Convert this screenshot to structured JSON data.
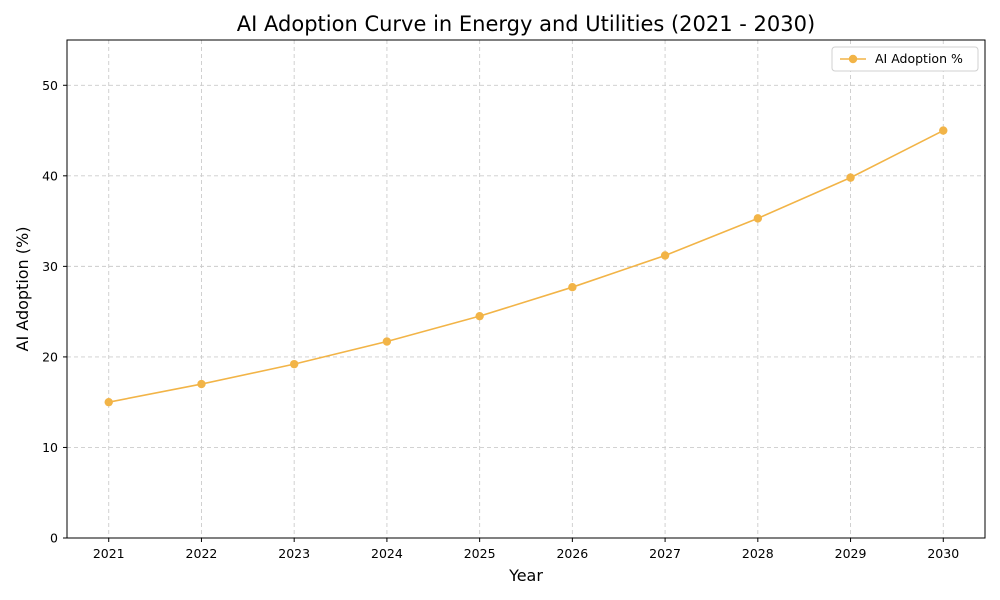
{
  "chart_data": {
    "type": "line",
    "title": "AI Adoption Curve in Energy and Utilities (2021 - 2030)",
    "xlabel": "Year",
    "ylabel": "AI Adoption (%)",
    "x": [
      2021,
      2022,
      2023,
      2024,
      2025,
      2026,
      2027,
      2028,
      2029,
      2030
    ],
    "x_tick_labels": [
      "2021",
      "2022",
      "2023",
      "2024",
      "2025",
      "2026",
      "2027",
      "2028",
      "2029",
      "2030"
    ],
    "y_ticks": [
      0,
      10,
      20,
      30,
      40,
      50
    ],
    "y_tick_labels": [
      "0",
      "10",
      "20",
      "30",
      "40",
      "50"
    ],
    "xlim": [
      2020.55,
      2030.45
    ],
    "ylim": [
      0,
      55
    ],
    "grid": true,
    "legend_position": "top-right",
    "series": [
      {
        "name": "AI Adoption %",
        "color": "#f2b447",
        "marker": "circle",
        "values": [
          15.0,
          17.0,
          19.2,
          21.7,
          24.5,
          27.7,
          31.2,
          35.3,
          39.8,
          45.0
        ]
      }
    ]
  }
}
